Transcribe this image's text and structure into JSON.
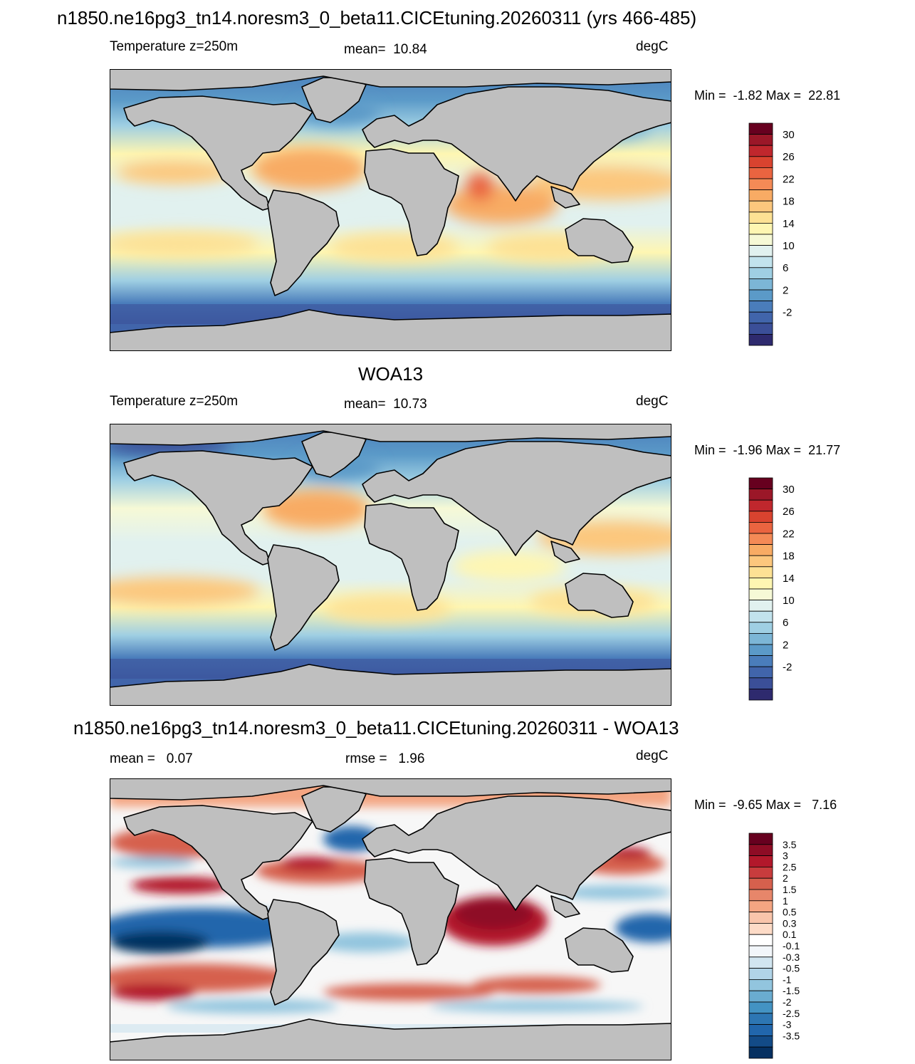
{
  "figure_title": "n1850.ne16pg3_tn14.noresm3_0_beta11.CICEtuning.20260311 (yrs 466-485)",
  "panels": [
    {
      "id": "model",
      "title": "",
      "left_label": "Temperature z=250m",
      "center_label": "mean=  10.84",
      "units": "degC",
      "minmax": "Min =  -1.82 Max =  22.81",
      "colorbar_labels": [
        "30",
        "26",
        "22",
        "18",
        "14",
        "10",
        "6",
        "2",
        "-2"
      ]
    },
    {
      "id": "obs",
      "title": "WOA13",
      "left_label": "Temperature z=250m",
      "center_label": "mean=  10.73",
      "units": "degC",
      "minmax": "Min =  -1.96 Max =  21.77",
      "colorbar_labels": [
        "30",
        "26",
        "22",
        "18",
        "14",
        "10",
        "6",
        "2",
        "-2"
      ]
    },
    {
      "id": "diff",
      "title": "n1850.ne16pg3_tn14.noresm3_0_beta11.CICEtuning.20260311 - WOA13",
      "left_label": "mean =   0.07",
      "center_label": "rmse =   1.96",
      "units": "degC",
      "minmax": "Min =  -9.65 Max =   7.16",
      "colorbar_labels": [
        "3.5",
        "3",
        "2.5",
        "2",
        "1.5",
        "1",
        "0.5",
        "0.3",
        "0.1",
        "-0.1",
        "-0.3",
        "-0.5",
        "-1",
        "-1.5",
        "-2",
        "-2.5",
        "-3",
        "-3.5"
      ]
    }
  ],
  "colors": {
    "land": "#bfbfbf",
    "temp_palette_top_to_bottom": [
      "#67001f",
      "#9b1728",
      "#c0272d",
      "#d9432f",
      "#ea6440",
      "#f48a56",
      "#f8ab64",
      "#fcc77d",
      "#fde194",
      "#fef6b2",
      "#f6f9d6",
      "#e1f1ef",
      "#c2e3ed",
      "#9fcfe3",
      "#7cb6d6",
      "#5b9ac8",
      "#4a7dbb",
      "#4165ab",
      "#3b4f98",
      "#2e2a6e"
    ],
    "diff_palette_top_to_bottom": [
      "#67001f",
      "#8e0c25",
      "#b2182b",
      "#c83c3d",
      "#d6604d",
      "#e7866a",
      "#f4a582",
      "#f9c5ab",
      "#fddbc7",
      "#ffffff",
      "#f2f6fa",
      "#d1e5f0",
      "#b1d4e8",
      "#92c5de",
      "#6aacd0",
      "#4393c3",
      "#2d76b3",
      "#2166ac",
      "#134b87",
      "#053061"
    ]
  }
}
